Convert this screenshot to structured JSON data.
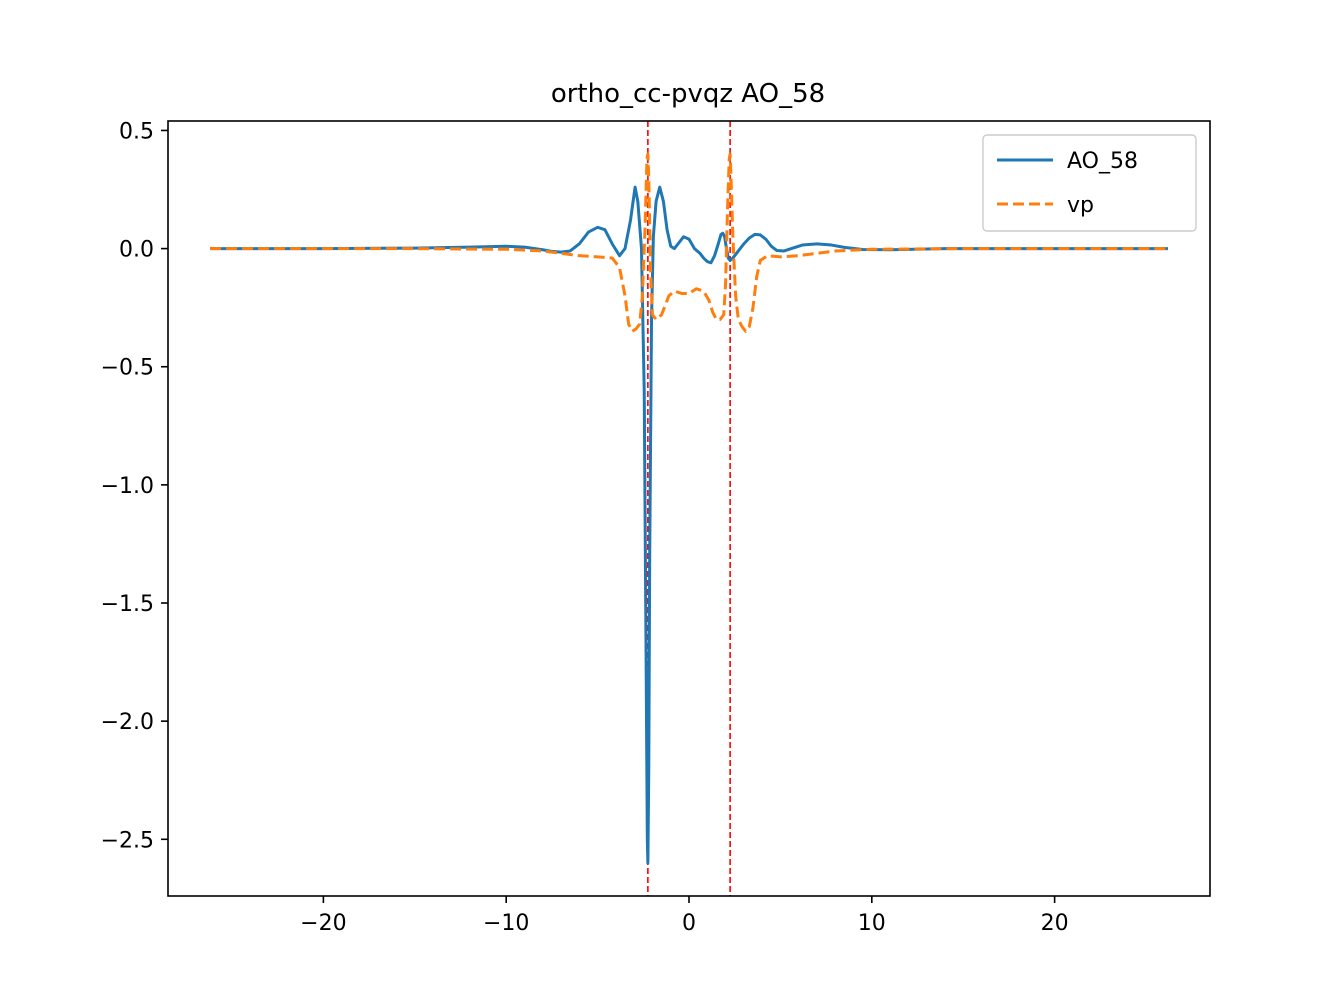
{
  "chart_data": {
    "type": "line",
    "title": "ortho_cc-pvqz AO_58",
    "xlabel": "",
    "ylabel": "",
    "xlim": [
      -28.5,
      28.5
    ],
    "ylim": [
      -2.74,
      0.54
    ],
    "xticks": [
      -20,
      -10,
      0,
      10,
      20
    ],
    "xtick_labels": [
      "−20",
      "−10",
      "0",
      "10",
      "20"
    ],
    "yticks": [
      0.5,
      0.0,
      -0.5,
      -1.0,
      -1.5,
      -2.0,
      -2.5
    ],
    "ytick_labels": [
      "0.5",
      "0.0",
      "−0.5",
      "−1.0",
      "−1.5",
      "−2.0",
      "−2.5"
    ],
    "grid": false,
    "legend": "top-right",
    "vlines": [
      {
        "x": -2.25,
        "color": "#ff0000",
        "style": "dashed"
      },
      {
        "x": 2.25,
        "color": "#ff0000",
        "style": "dashed"
      }
    ],
    "series": [
      {
        "name": "AO_58",
        "color": "#1f77b4",
        "style": "solid",
        "points": [
          [
            -26.2,
            0.0
          ],
          [
            -20,
            0.0
          ],
          [
            -15,
            0.002
          ],
          [
            -12,
            0.006
          ],
          [
            -10,
            0.01
          ],
          [
            -9,
            0.006
          ],
          [
            -8,
            -0.005
          ],
          [
            -7.5,
            -0.012
          ],
          [
            -7,
            -0.015
          ],
          [
            -6.5,
            -0.01
          ],
          [
            -6,
            0.02
          ],
          [
            -5.5,
            0.07
          ],
          [
            -5,
            0.09
          ],
          [
            -4.6,
            0.08
          ],
          [
            -4.2,
            0.02
          ],
          [
            -3.8,
            -0.03
          ],
          [
            -3.5,
            0.0
          ],
          [
            -3.2,
            0.12
          ],
          [
            -2.95,
            0.26
          ],
          [
            -2.8,
            0.2
          ],
          [
            -2.6,
            0.0
          ],
          [
            -2.45,
            -0.6
          ],
          [
            -2.35,
            -1.7
          ],
          [
            -2.28,
            -2.5
          ],
          [
            -2.25,
            -2.6
          ],
          [
            -2.2,
            -2.2
          ],
          [
            -2.15,
            -1.3
          ],
          [
            -2.05,
            -0.3
          ],
          [
            -1.95,
            0.05
          ],
          [
            -1.8,
            0.2
          ],
          [
            -1.6,
            0.26
          ],
          [
            -1.4,
            0.2
          ],
          [
            -1.2,
            0.08
          ],
          [
            -1.0,
            0.01
          ],
          [
            -0.8,
            0.0
          ],
          [
            -0.6,
            0.02
          ],
          [
            -0.3,
            0.05
          ],
          [
            0,
            0.04
          ],
          [
            0.3,
            0.0
          ],
          [
            0.6,
            -0.02
          ],
          [
            0.8,
            -0.04
          ],
          [
            1.0,
            -0.055
          ],
          [
            1.2,
            -0.06
          ],
          [
            1.4,
            -0.03
          ],
          [
            1.6,
            0.02
          ],
          [
            1.75,
            0.06
          ],
          [
            1.85,
            0.065
          ],
          [
            1.95,
            0.05
          ],
          [
            2.05,
            0.0
          ],
          [
            2.15,
            -0.04
          ],
          [
            2.25,
            -0.05
          ],
          [
            2.4,
            -0.04
          ],
          [
            2.6,
            -0.02
          ],
          [
            2.8,
            0.0
          ],
          [
            3.0,
            0.02
          ],
          [
            3.3,
            0.045
          ],
          [
            3.6,
            0.06
          ],
          [
            3.9,
            0.058
          ],
          [
            4.2,
            0.04
          ],
          [
            4.5,
            0.01
          ],
          [
            4.8,
            -0.008
          ],
          [
            5.2,
            -0.01
          ],
          [
            5.6,
            0.0
          ],
          [
            6.2,
            0.015
          ],
          [
            7,
            0.02
          ],
          [
            7.8,
            0.015
          ],
          [
            8.5,
            0.005
          ],
          [
            9.5,
            -0.004
          ],
          [
            11,
            -0.005
          ],
          [
            14,
            0.0
          ],
          [
            20,
            0.0
          ],
          [
            26.2,
            0.0
          ]
        ]
      },
      {
        "name": "vp",
        "color": "#ff7f0e",
        "style": "dashed",
        "points": [
          [
            -26.2,
            0.0
          ],
          [
            -15,
            0.0
          ],
          [
            -10,
            -0.003
          ],
          [
            -8,
            -0.01
          ],
          [
            -7,
            -0.02
          ],
          [
            -6,
            -0.03
          ],
          [
            -5,
            -0.035
          ],
          [
            -4.2,
            -0.04
          ],
          [
            -3.8,
            -0.08
          ],
          [
            -3.5,
            -0.2
          ],
          [
            -3.3,
            -0.32
          ],
          [
            -3.1,
            -0.35
          ],
          [
            -2.9,
            -0.34
          ],
          [
            -2.7,
            -0.32
          ],
          [
            -2.55,
            -0.2
          ],
          [
            -2.4,
            0.1
          ],
          [
            -2.3,
            0.38
          ],
          [
            -2.25,
            0.4
          ],
          [
            -2.2,
            0.3
          ],
          [
            -2.1,
            -0.1
          ],
          [
            -2.0,
            -0.28
          ],
          [
            -1.8,
            -0.3
          ],
          [
            -1.5,
            -0.28
          ],
          [
            -1.3,
            -0.24
          ],
          [
            -1.1,
            -0.2
          ],
          [
            -0.8,
            -0.18
          ],
          [
            -0.4,
            -0.19
          ],
          [
            0,
            -0.19
          ],
          [
            0.4,
            -0.17
          ],
          [
            0.8,
            -0.18
          ],
          [
            1.1,
            -0.22
          ],
          [
            1.3,
            -0.27
          ],
          [
            1.5,
            -0.3
          ],
          [
            1.7,
            -0.3
          ],
          [
            1.9,
            -0.28
          ],
          [
            2.0,
            -0.15
          ],
          [
            2.1,
            0.15
          ],
          [
            2.2,
            0.38
          ],
          [
            2.25,
            0.4
          ],
          [
            2.3,
            0.3
          ],
          [
            2.4,
            0.05
          ],
          [
            2.55,
            -0.2
          ],
          [
            2.7,
            -0.3
          ],
          [
            2.9,
            -0.33
          ],
          [
            3.1,
            -0.35
          ],
          [
            3.3,
            -0.33
          ],
          [
            3.5,
            -0.25
          ],
          [
            3.7,
            -0.12
          ],
          [
            3.9,
            -0.05
          ],
          [
            4.3,
            -0.03
          ],
          [
            5,
            -0.035
          ],
          [
            6,
            -0.03
          ],
          [
            7,
            -0.02
          ],
          [
            8,
            -0.01
          ],
          [
            10,
            -0.003
          ],
          [
            15,
            0.0
          ],
          [
            26.2,
            0.0
          ]
        ]
      }
    ]
  }
}
